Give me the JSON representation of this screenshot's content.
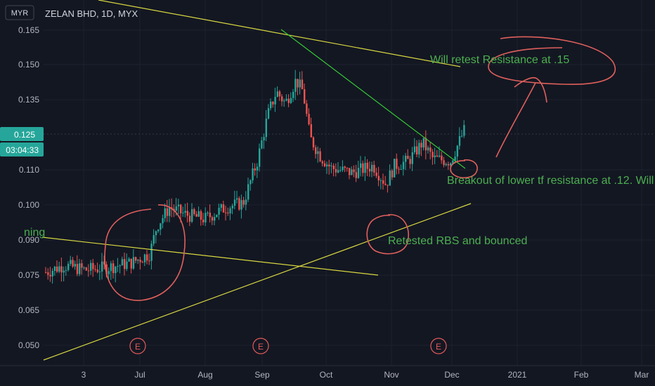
{
  "header": {
    "currency": "MYR",
    "symbol_line": "ZELAN BHD, 1D, MYX"
  },
  "price_labels": {
    "last_price": "0.125",
    "countdown": "03:04:33"
  },
  "colors": {
    "background": "#131722",
    "up": "#26a69a",
    "down": "#ef5350",
    "trendline_yellow": "#d8d840",
    "trendline_green": "#36c836",
    "annotation_text": "#4caf50",
    "marker": "#e05a5a",
    "scribble": "#e0605c"
  },
  "earnings_marker_label": "E",
  "annotations": [
    {
      "text": "Will retest Resistance at .15"
    },
    {
      "text": "Breakout of lower tf resistance at .12. Will"
    },
    {
      "text": "Retested RBS and bounced"
    },
    {
      "text": "ning"
    }
  ],
  "chart_data": {
    "type": "candlestick",
    "title": "ZELAN BHD, 1D, MYX",
    "currency": "MYR",
    "ylim": [
      0.045,
      0.17
    ],
    "y_ticks": [
      "0.165",
      "0.150",
      "0.135",
      "0.110",
      "0.100",
      "0.090",
      "0.075",
      "0.065",
      "0.050"
    ],
    "x_ticks": [
      "3",
      "Jul",
      "Aug",
      "Sep",
      "Oct",
      "Nov",
      "Dec",
      "2021",
      "Feb",
      "Mar"
    ],
    "grid": true,
    "last_price": 0.125,
    "earnings_dates": [
      "Jul",
      "Sep",
      "Dec"
    ],
    "approx_close_by_month": [
      {
        "period": "Jun",
        "close": 0.065
      },
      {
        "period": "Jul",
        "close": 0.09
      },
      {
        "period": "Aug",
        "close": 0.085
      },
      {
        "period": "Sep",
        "close": 0.145
      },
      {
        "period": "Oct",
        "close": 0.105
      },
      {
        "period": "Nov",
        "close": 0.11
      },
      {
        "period": "Dec",
        "close": 0.125
      }
    ]
  }
}
